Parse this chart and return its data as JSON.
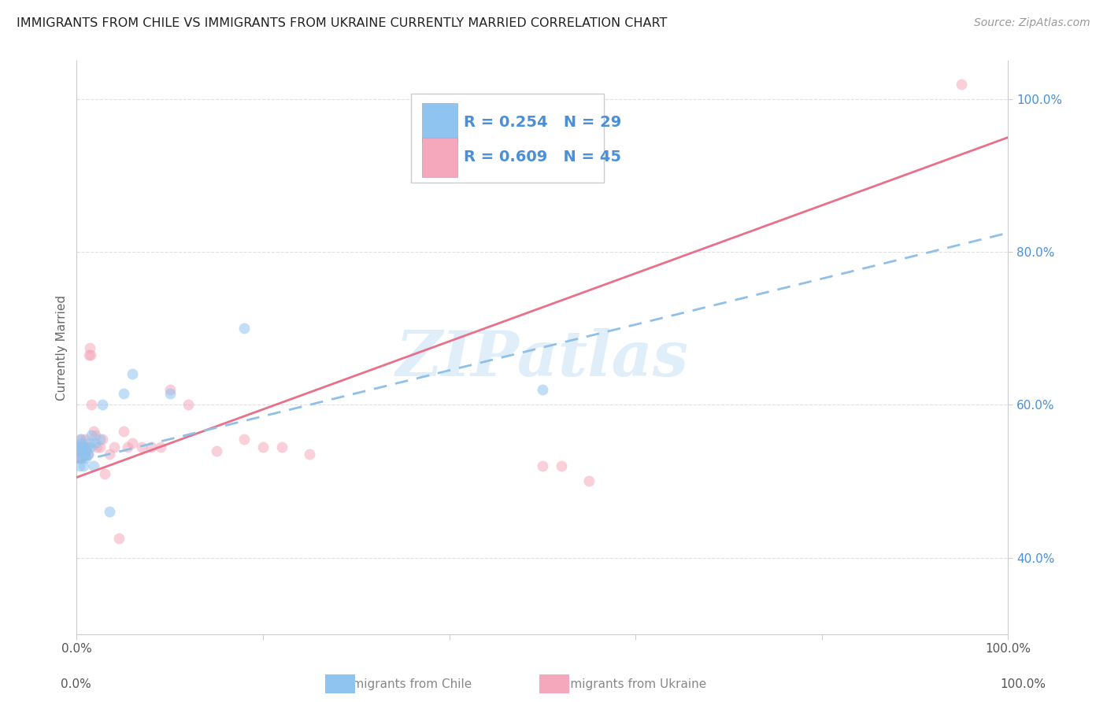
{
  "title": "IMMIGRANTS FROM CHILE VS IMMIGRANTS FROM UKRAINE CURRENTLY MARRIED CORRELATION CHART",
  "source": "Source: ZipAtlas.com",
  "ylabel": "Currently Married",
  "chile_color": "#8ec4ef",
  "ukraine_color": "#f5a8bc",
  "chile_line_color": "#90c0e8",
  "ukraine_line_color": "#e8708a",
  "chile_R": 0.254,
  "chile_N": 29,
  "ukraine_R": 0.609,
  "ukraine_N": 45,
  "legend_text_color": "#4a90d9",
  "watermark": "ZIPatlas",
  "chile_scatter_x": [
    0.001,
    0.002,
    0.003,
    0.003,
    0.004,
    0.004,
    0.005,
    0.005,
    0.006,
    0.006,
    0.007,
    0.008,
    0.009,
    0.01,
    0.011,
    0.012,
    0.014,
    0.015,
    0.016,
    0.018,
    0.02,
    0.025,
    0.028,
    0.035,
    0.05,
    0.06,
    0.1,
    0.18,
    0.5
  ],
  "chile_scatter_y": [
    0.545,
    0.54,
    0.53,
    0.52,
    0.545,
    0.555,
    0.54,
    0.55,
    0.53,
    0.545,
    0.52,
    0.535,
    0.545,
    0.53,
    0.54,
    0.535,
    0.55,
    0.545,
    0.56,
    0.52,
    0.55,
    0.555,
    0.6,
    0.46,
    0.615,
    0.64,
    0.615,
    0.7,
    0.62
  ],
  "ukraine_scatter_x": [
    0.001,
    0.002,
    0.002,
    0.003,
    0.004,
    0.004,
    0.005,
    0.005,
    0.006,
    0.007,
    0.008,
    0.009,
    0.01,
    0.011,
    0.012,
    0.013,
    0.014,
    0.015,
    0.016,
    0.018,
    0.02,
    0.022,
    0.025,
    0.028,
    0.03,
    0.035,
    0.04,
    0.045,
    0.05,
    0.055,
    0.06,
    0.07,
    0.08,
    0.09,
    0.1,
    0.12,
    0.15,
    0.18,
    0.2,
    0.22,
    0.25,
    0.5,
    0.52,
    0.55,
    0.95
  ],
  "ukraine_scatter_y": [
    0.54,
    0.545,
    0.53,
    0.545,
    0.53,
    0.54,
    0.545,
    0.555,
    0.54,
    0.545,
    0.535,
    0.555,
    0.54,
    0.545,
    0.535,
    0.665,
    0.675,
    0.665,
    0.6,
    0.565,
    0.56,
    0.545,
    0.545,
    0.555,
    0.51,
    0.535,
    0.545,
    0.425,
    0.565,
    0.545,
    0.55,
    0.545,
    0.545,
    0.545,
    0.62,
    0.6,
    0.54,
    0.555,
    0.545,
    0.545,
    0.535,
    0.52,
    0.52,
    0.5,
    1.02
  ],
  "bg_color": "#ffffff",
  "grid_color": "#e0e0e0",
  "marker_size": 100,
  "marker_alpha": 0.55,
  "xlim": [
    0.0,
    1.0
  ],
  "ylim": [
    0.3,
    1.05
  ],
  "yticks": [
    0.4,
    0.6,
    0.8,
    1.0
  ],
  "ytick_labels": [
    "40.0%",
    "60.0%",
    "80.0%",
    "100.0%"
  ],
  "xticks": [
    0.0,
    0.2,
    0.4,
    0.6,
    0.8,
    1.0
  ],
  "xtick_labels_show": [
    "0.0%",
    "",
    "",
    "",
    "",
    "100.0%"
  ]
}
